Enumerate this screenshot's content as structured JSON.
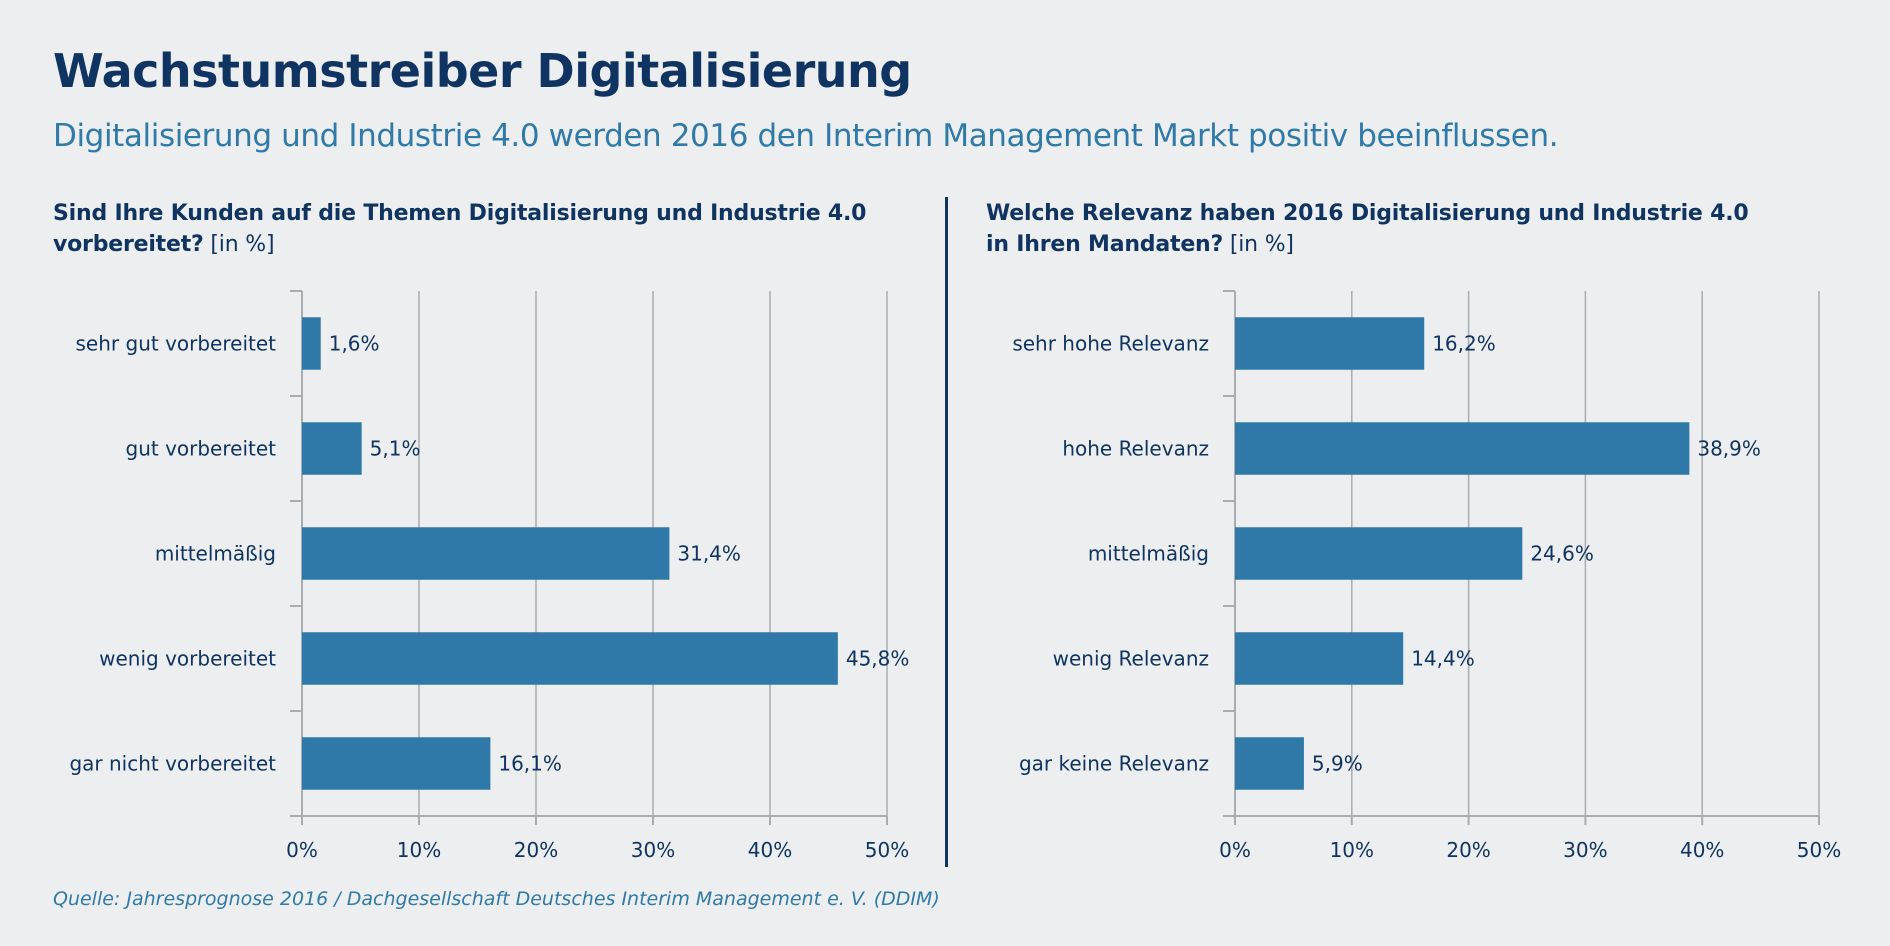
{
  "header": {
    "title": "Wachstumstreiber Digitalisierung",
    "subtitle": "Digitalisierung und Industrie 4.0 werden 2016 den Interim Management Markt positiv beeinflussen."
  },
  "colors": {
    "bar": "#2e79a7",
    "text": "#0f3461",
    "accent": "#2f7aa8",
    "grid": "#a9adb1"
  },
  "chart_data": [
    {
      "type": "bar",
      "orientation": "horizontal",
      "title_line1": "Sind Ihre Kunden auf die Themen Digitalisierung und Industrie 4.0",
      "title_line2_bold": "vorbereitet?",
      "title_unit": "[in %]",
      "categories": [
        "sehr gut vorbereitet",
        "gut vorbereitet",
        "mittelmäßig",
        "wenig vorbereitet",
        "gar nicht vorbereitet"
      ],
      "values": [
        1.6,
        5.1,
        31.4,
        45.8,
        16.1
      ],
      "value_labels": [
        "1,6%",
        "5,1%",
        "31,4%",
        "45,8%",
        "16,1%"
      ],
      "xlim": [
        0,
        50
      ],
      "ticks": [
        0,
        10,
        20,
        30,
        40,
        50
      ],
      "tick_labels": [
        "0%",
        "10%",
        "20%",
        "30%",
        "40%",
        "50%"
      ],
      "grid": true
    },
    {
      "type": "bar",
      "orientation": "horizontal",
      "title_line1": "Welche Relevanz haben 2016 Digitalisierung und Industrie 4.0",
      "title_line2_bold": "in Ihren Mandaten?",
      "title_unit": "[in %]",
      "categories": [
        "sehr hohe Relevanz",
        "hohe Relevanz",
        "mittelmäßig",
        "wenig Relevanz",
        "gar keine Relevanz"
      ],
      "values": [
        16.2,
        38.9,
        24.6,
        14.4,
        5.9
      ],
      "value_labels": [
        "16,2%",
        "38,9%",
        "24,6%",
        "14,4%",
        "5,9%"
      ],
      "xlim": [
        0,
        50
      ],
      "ticks": [
        0,
        10,
        20,
        30,
        40,
        50
      ],
      "tick_labels": [
        "0%",
        "10%",
        "20%",
        "30%",
        "40%",
        "50%"
      ],
      "grid": true
    }
  ],
  "footer": {
    "source": "Quelle: Jahresprognose 2016 / Dachgesellschaft Deutsches Interim Management e. V. (DDIM)"
  }
}
